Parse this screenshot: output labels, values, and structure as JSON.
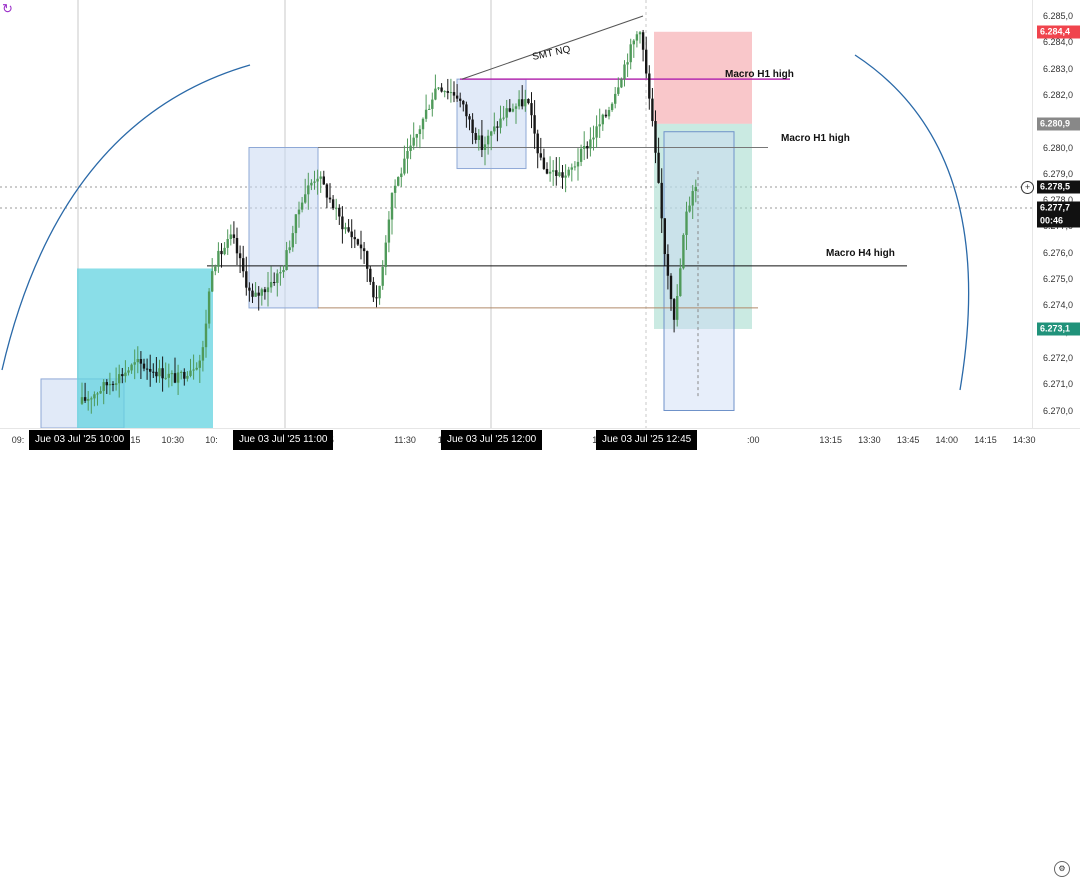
{
  "app": {
    "sync_icon": "sync-icon",
    "settings_icon": "gear-icon",
    "crosshair_icon": "crosshair-icon"
  },
  "colors": {
    "bull": "#4f9a5a",
    "bear": "#161616",
    "cyan_zone": "#63d3e0",
    "blue_box": "#c9d9f3",
    "red_zone": "#f8b9bd",
    "green_zone": "#9fd8cb",
    "magenta_line": "#b42db1",
    "arc": "#2a69a8",
    "label_red": "#f0444d",
    "label_grey": "#888888",
    "label_black": "#111111",
    "label_green": "#20927a"
  },
  "price_axis": {
    "ticks": [
      "6.285,0",
      "6.284,0",
      "6.283,0",
      "6.282,0",
      "6.281,0",
      "6.280,0",
      "6.279,0",
      "6.278,0",
      "6.277,0",
      "6.276,0",
      "6.275,0",
      "6.274,0",
      "6.273,0",
      "6.272,0",
      "6.271,0",
      "6.270,0"
    ],
    "labels": [
      {
        "text": "6.284,4",
        "price": 6284.4,
        "color": "#f0444d"
      },
      {
        "text": "6.280,9",
        "price": 6280.9,
        "color": "#888888"
      },
      {
        "text": "6.278,5",
        "price": 6278.5,
        "color": "#111111"
      },
      {
        "text": "6.277,7",
        "price": 6277.7,
        "color": "#111111"
      },
      {
        "text": "00:46",
        "price": 6277.2,
        "color": "#111111"
      },
      {
        "text": "6.273,1",
        "price": 6273.1,
        "color": "#20927a"
      }
    ]
  },
  "time_axis": {
    "ticks": [
      {
        "text": "09:",
        "t": 0
      },
      {
        "text": ":15",
        "t": 3
      },
      {
        "text": "10:30",
        "t": 4
      },
      {
        "text": "10:",
        "t": 5
      },
      {
        "text": ":15",
        "t": 8
      },
      {
        "text": "11:30",
        "t": 10
      },
      {
        "text": "11:",
        "t": 11
      },
      {
        "text": "12:",
        "t": 15
      },
      {
        "text": ":00",
        "t": 19
      },
      {
        "text": "13:15",
        "t": 21
      },
      {
        "text": "13:30",
        "t": 22
      },
      {
        "text": "13:45",
        "t": 23
      },
      {
        "text": "14:00",
        "t": 24
      },
      {
        "text": "14:15",
        "t": 25
      },
      {
        "text": "14:30",
        "t": 26
      }
    ],
    "labels": [
      {
        "text": "Jue 03 Jul '25   10:00",
        "t": 2
      },
      {
        "text": "Jue 03 Jul '25   11:00",
        "t": 7
      },
      {
        "text": "Jue 03 Jul '25   12:00",
        "t": 13
      },
      {
        "text": "Jue 03 Jul '25   12:45",
        "t": 17
      }
    ]
  },
  "annotations": [
    {
      "text": "SMT NQ",
      "price": 6283.5,
      "t": 14
    },
    {
      "text": "Macro H1 high",
      "price": 6282.7,
      "t": 19.3
    },
    {
      "text": "Macro H1 high",
      "price": 6280.3,
      "t": 21.5
    },
    {
      "text": "Macro H4 high",
      "price": 6275.9,
      "t": 22.5
    }
  ]
}
